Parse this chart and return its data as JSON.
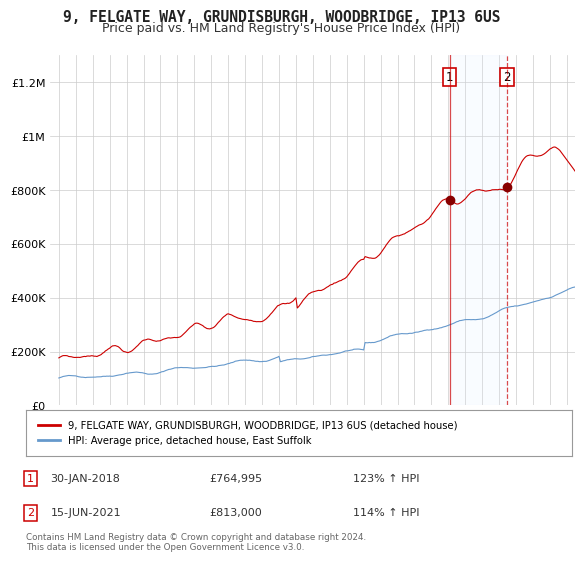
{
  "title": "9, FELGATE WAY, GRUNDISBURGH, WOODBRIDGE, IP13 6US",
  "subtitle": "Price paid vs. HM Land Registry's House Price Index (HPI)",
  "title_fontsize": 10.5,
  "subtitle_fontsize": 9,
  "ylabel_ticks": [
    "£0",
    "£200K",
    "£400K",
    "£600K",
    "£800K",
    "£1M",
    "£1.2M"
  ],
  "ytick_values": [
    0,
    200000,
    400000,
    600000,
    800000,
    1000000,
    1200000
  ],
  "ylim": [
    0,
    1300000
  ],
  "xlim_start": 1994.5,
  "xlim_end": 2025.5,
  "line1_color": "#cc0000",
  "line2_color": "#6699cc",
  "marker_color": "#880000",
  "vline1_color": "#cc0000",
  "vline2_color": "#cc0000",
  "shade_color": "#ddeeff",
  "point1_x": 2018.08,
  "point1_y": 764995,
  "point1_label": "1",
  "point2_x": 2021.46,
  "point2_y": 813000,
  "point2_label": "2",
  "legend_line1": "9, FELGATE WAY, GRUNDISBURGH, WOODBRIDGE, IP13 6US (detached house)",
  "legend_line2": "HPI: Average price, detached house, East Suffolk",
  "annotation1_num": "1",
  "annotation1_date": "30-JAN-2018",
  "annotation1_price": "£764,995",
  "annotation1_hpi": "123% ↑ HPI",
  "annotation2_num": "2",
  "annotation2_date": "15-JUN-2021",
  "annotation2_price": "£813,000",
  "annotation2_hpi": "114% ↑ HPI",
  "footer": "Contains HM Land Registry data © Crown copyright and database right 2024.\nThis data is licensed under the Open Government Licence v3.0.",
  "background_color": "#ffffff",
  "grid_color": "#cccccc"
}
